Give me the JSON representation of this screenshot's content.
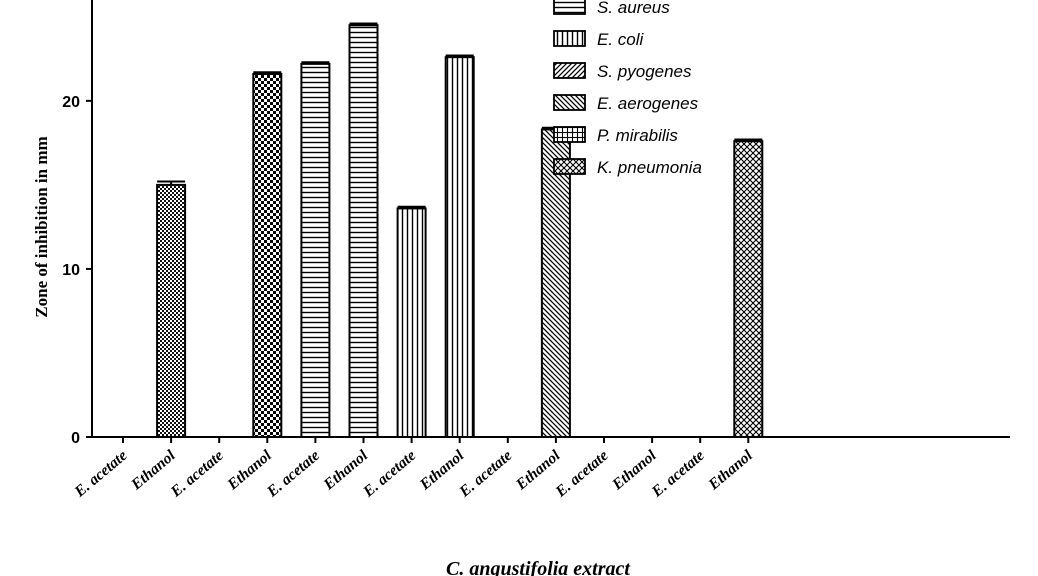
{
  "chart_data": {
    "type": "bar",
    "ylabel": "Zone of inhibition in mm",
    "xlabel": "C. angustifolia extract",
    "ylim": [
      0,
      26
    ],
    "yticks": [
      0,
      10,
      20
    ],
    "grid": false,
    "legend_position": "top-right",
    "categories": [
      "E. acetate",
      "Ethanol",
      "E. acetate",
      "Ethanol",
      "E. acetate",
      "Ethanol",
      "E. acetate",
      "Ethanol",
      "E. acetate",
      "Ethanol",
      "E. acetate",
      "Ethanol",
      "E. acetate",
      "Ethanol"
    ],
    "legend": [
      {
        "name": "S. aureus",
        "pattern": "hlines"
      },
      {
        "name": "E. coli",
        "pattern": "vlines"
      },
      {
        "name": "S. pyogenes",
        "pattern": "diag-up"
      },
      {
        "name": "E. aerogenes",
        "pattern": "diag-down"
      },
      {
        "name": "P. mirabilis",
        "pattern": "grid"
      },
      {
        "name": "K. pneumonia",
        "pattern": "crosshatch"
      }
    ],
    "bars": [
      {
        "category_index": 1,
        "value": 15.0,
        "error": 0.2,
        "pattern": "fine-checker"
      },
      {
        "category_index": 3,
        "value": 21.6,
        "error": 0.1,
        "pattern": "checker"
      },
      {
        "category_index": 4,
        "value": 22.2,
        "error": 0.1,
        "pattern": "hlines"
      },
      {
        "category_index": 5,
        "value": 24.5,
        "error": 0.1,
        "pattern": "hlines"
      },
      {
        "category_index": 6,
        "value": 13.6,
        "error": 0.1,
        "pattern": "vlines"
      },
      {
        "category_index": 7,
        "value": 22.6,
        "error": 0.1,
        "pattern": "vlines"
      },
      {
        "category_index": 9,
        "value": 18.3,
        "error": 0.1,
        "pattern": "diag-down"
      },
      {
        "category_index": 13,
        "value": 17.6,
        "error": 0.1,
        "pattern": "crosshatch"
      }
    ]
  }
}
